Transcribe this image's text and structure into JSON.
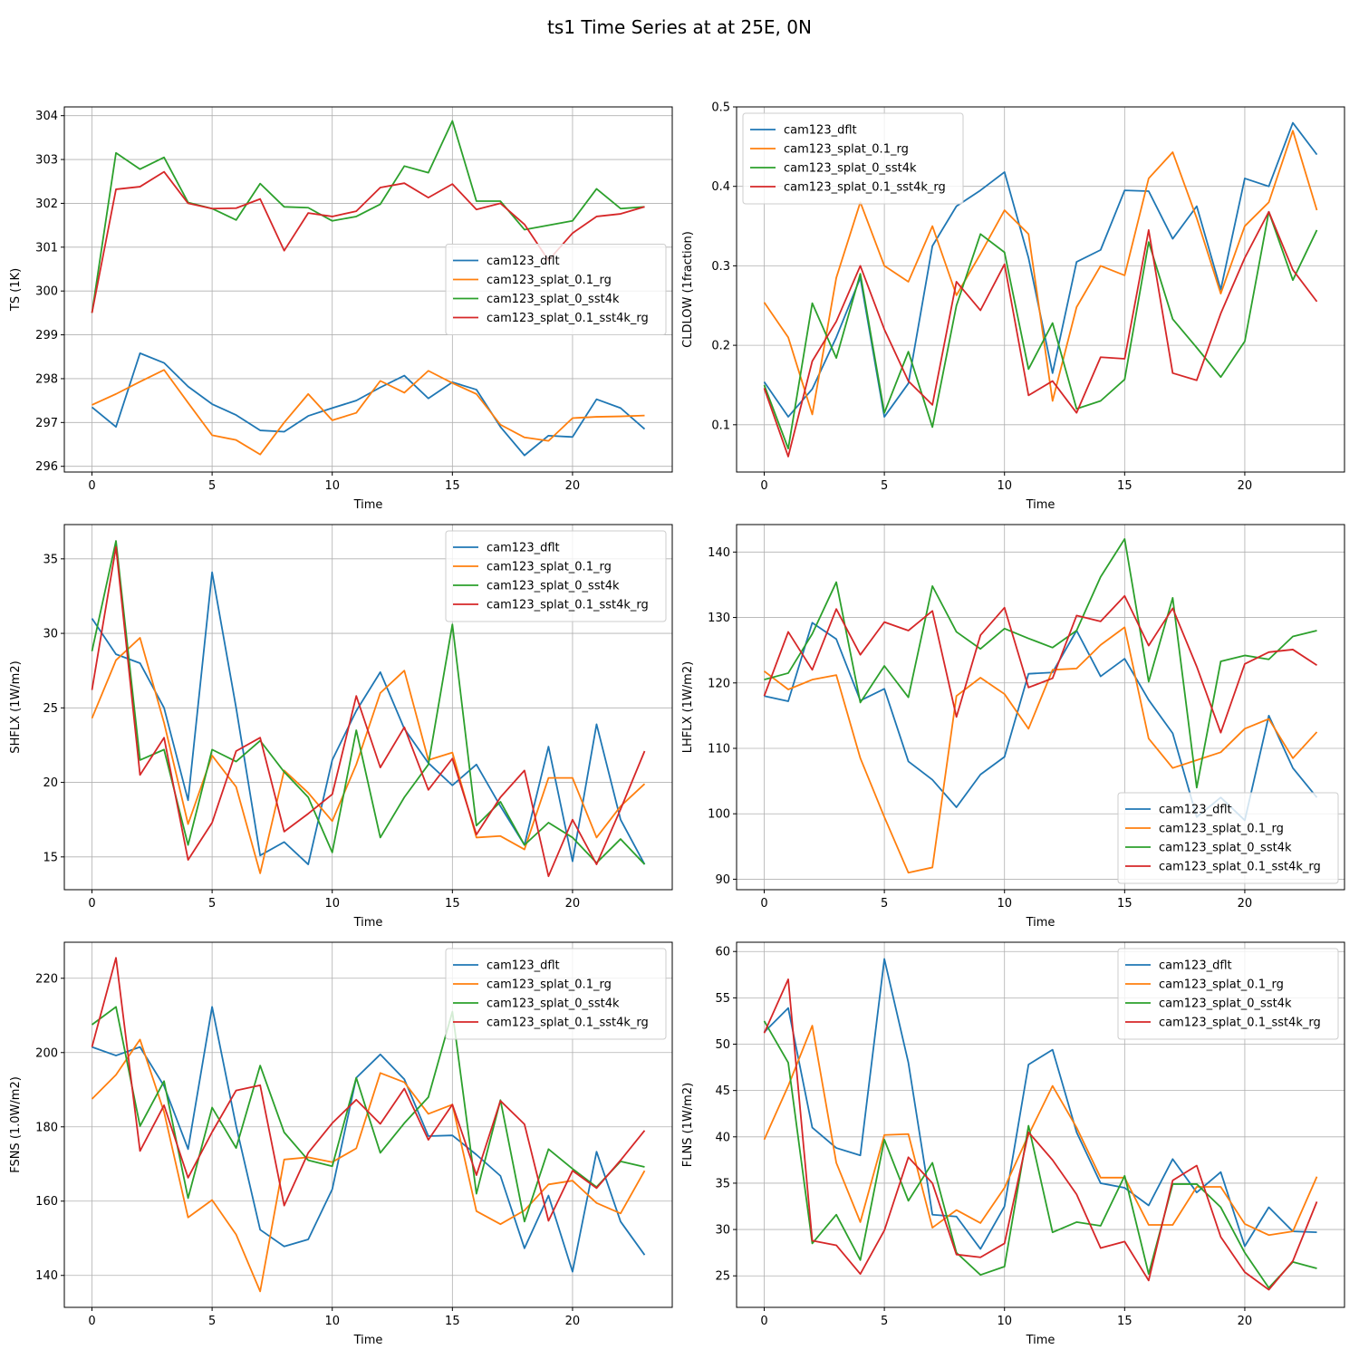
{
  "figure_title": "ts1 Time Series at at 25E, 0N",
  "series_colors": {
    "cam123_dflt": "#1f77b4",
    "cam123_splat_0.1_rg": "#ff7f0e",
    "cam123_splat_0_sst4k": "#2ca02c",
    "cam123_splat_0.1_sst4k_rg": "#d62728"
  },
  "chart_data": [
    {
      "type": "line",
      "title": "",
      "xlabel": "Time",
      "ylabel": "TS (1K)",
      "xlim": [
        -1.15,
        24.15
      ],
      "ylim": [
        295.87,
        304.2
      ],
      "xticks": [
        0,
        5,
        10,
        15,
        20
      ],
      "yticks": [
        296,
        297,
        298,
        299,
        300,
        301,
        302,
        303,
        304
      ],
      "legend_position": "center-right",
      "x": [
        0,
        1,
        2,
        3,
        4,
        5,
        6,
        7,
        8,
        9,
        10,
        11,
        12,
        13,
        14,
        15,
        16,
        17,
        18,
        19,
        20,
        21,
        22,
        23
      ],
      "series": [
        {
          "name": "cam123_dflt",
          "values": [
            297.35,
            296.9,
            298.58,
            298.36,
            297.82,
            297.42,
            297.17,
            296.82,
            296.79,
            297.15,
            297.33,
            297.5,
            297.8,
            298.07,
            297.55,
            297.92,
            297.75,
            296.9,
            296.25,
            296.7,
            296.67,
            297.53,
            297.33,
            296.85
          ]
        },
        {
          "name": "cam123_splat_0.1_rg",
          "values": [
            297.4,
            297.65,
            297.93,
            298.2,
            297.45,
            296.71,
            296.6,
            296.27,
            297.0,
            297.65,
            297.05,
            297.22,
            297.95,
            297.68,
            298.18,
            297.9,
            297.65,
            296.95,
            296.66,
            296.58,
            297.1,
            297.13,
            297.14,
            297.16
          ]
        },
        {
          "name": "cam123_splat_0_sst4k",
          "values": [
            299.5,
            303.15,
            302.78,
            303.05,
            302.02,
            301.88,
            301.62,
            302.45,
            301.92,
            301.9,
            301.6,
            301.7,
            301.98,
            302.85,
            302.7,
            303.88,
            302.05,
            302.05,
            301.4,
            301.5,
            301.6,
            302.33,
            301.88,
            301.92
          ]
        },
        {
          "name": "cam123_splat_0.1_sst4k_rg",
          "values": [
            299.5,
            302.32,
            302.38,
            302.72,
            302.0,
            301.88,
            301.89,
            302.1,
            300.92,
            301.78,
            301.7,
            301.82,
            302.36,
            302.46,
            302.13,
            302.44,
            301.86,
            302.0,
            301.52,
            300.7,
            301.32,
            301.7,
            301.76,
            301.92
          ]
        }
      ]
    },
    {
      "type": "line",
      "title": "",
      "xlabel": "Time",
      "ylabel": "CLDLOW (1fraction)",
      "xlim": [
        -1.15,
        24.15
      ],
      "ylim": [
        0.0405,
        0.5
      ],
      "xticks": [
        0,
        5,
        10,
        15,
        20
      ],
      "yticks": [
        0.1,
        0.2,
        0.3,
        0.4,
        0.5
      ],
      "legend_position": "top-left",
      "x": [
        0,
        1,
        2,
        3,
        4,
        5,
        6,
        7,
        8,
        9,
        10,
        11,
        12,
        13,
        14,
        15,
        16,
        17,
        18,
        19,
        20,
        21,
        22,
        23
      ],
      "series": [
        {
          "name": "cam123_dflt",
          "values": [
            0.154,
            0.11,
            0.145,
            0.21,
            0.285,
            0.11,
            0.152,
            0.325,
            0.375,
            0.395,
            0.418,
            0.31,
            0.165,
            0.305,
            0.32,
            0.395,
            0.394,
            0.334,
            0.375,
            0.27,
            0.41,
            0.4,
            0.48,
            0.44
          ]
        },
        {
          "name": "cam123_splat_0.1_rg",
          "values": [
            0.254,
            0.21,
            0.113,
            0.285,
            0.38,
            0.3,
            0.28,
            0.35,
            0.263,
            0.315,
            0.37,
            0.34,
            0.13,
            0.248,
            0.3,
            0.288,
            0.41,
            0.443,
            0.36,
            0.265,
            0.35,
            0.38,
            0.47,
            0.37
          ]
        },
        {
          "name": "cam123_splat_0_sst4k",
          "values": [
            0.15,
            0.07,
            0.253,
            0.184,
            0.29,
            0.115,
            0.192,
            0.097,
            0.25,
            0.34,
            0.317,
            0.17,
            0.228,
            0.12,
            0.13,
            0.157,
            0.33,
            0.233,
            0.197,
            0.16,
            0.205,
            0.368,
            0.282,
            0.345
          ]
        },
        {
          "name": "cam123_splat_0.1_sst4k_rg",
          "values": [
            0.146,
            0.06,
            0.18,
            0.23,
            0.3,
            0.22,
            0.155,
            0.125,
            0.28,
            0.244,
            0.302,
            0.137,
            0.155,
            0.115,
            0.185,
            0.183,
            0.345,
            0.165,
            0.156,
            0.24,
            0.31,
            0.368,
            0.295,
            0.255
          ]
        }
      ]
    },
    {
      "type": "line",
      "title": "",
      "xlabel": "Time",
      "ylabel": "SHFLX (1W/m2)",
      "xlim": [
        -1.15,
        24.15
      ],
      "ylim": [
        12.8,
        37.3
      ],
      "xticks": [
        0,
        5,
        10,
        15,
        20
      ],
      "yticks": [
        15,
        20,
        25,
        30,
        35
      ],
      "legend_position": "top-right",
      "x": [
        0,
        1,
        2,
        3,
        4,
        5,
        6,
        7,
        8,
        9,
        10,
        11,
        12,
        13,
        14,
        15,
        16,
        17,
        18,
        19,
        20,
        21,
        22,
        23
      ],
      "series": [
        {
          "name": "cam123_dflt",
          "values": [
            31.0,
            28.6,
            28.0,
            25.0,
            18.8,
            34.1,
            25.0,
            15.1,
            16.0,
            14.5,
            21.5,
            24.8,
            27.4,
            23.6,
            21.3,
            19.8,
            21.2,
            18.4,
            15.8,
            22.4,
            14.7,
            23.9,
            17.5,
            14.5
          ]
        },
        {
          "name": "cam123_splat_0.1_rg",
          "values": [
            24.3,
            28.2,
            29.7,
            24.0,
            17.2,
            21.8,
            19.7,
            13.9,
            20.8,
            19.3,
            17.4,
            21.2,
            26.0,
            27.5,
            21.5,
            22.0,
            16.3,
            16.4,
            15.5,
            20.3,
            20.3,
            16.3,
            18.4,
            19.9
          ]
        },
        {
          "name": "cam123_splat_0_sst4k",
          "values": [
            28.8,
            36.2,
            21.5,
            22.2,
            15.8,
            22.2,
            21.4,
            22.8,
            20.7,
            19.0,
            15.3,
            23.5,
            16.3,
            19.0,
            21.2,
            30.6,
            17.1,
            18.7,
            15.8,
            17.3,
            16.3,
            14.6,
            16.2,
            14.5
          ]
        },
        {
          "name": "cam123_splat_0.1_sst4k_rg",
          "values": [
            26.2,
            35.8,
            20.5,
            23.0,
            14.8,
            17.3,
            22.1,
            23.0,
            16.7,
            17.9,
            19.2,
            25.8,
            21.0,
            23.7,
            19.5,
            21.6,
            16.5,
            19.0,
            20.8,
            13.7,
            17.5,
            14.5,
            18.2,
            22.1
          ]
        }
      ]
    },
    {
      "type": "line",
      "title": "",
      "xlabel": "Time",
      "ylabel": "LHFLX (1W/m2)",
      "xlim": [
        -1.15,
        24.15
      ],
      "ylim": [
        88.4,
        144.2
      ],
      "xticks": [
        0,
        5,
        10,
        15,
        20
      ],
      "yticks": [
        90,
        100,
        110,
        120,
        130,
        140
      ],
      "legend_position": "bottom-right",
      "x": [
        0,
        1,
        2,
        3,
        4,
        5,
        6,
        7,
        8,
        9,
        10,
        11,
        12,
        13,
        14,
        15,
        16,
        17,
        18,
        19,
        20,
        21,
        22,
        23
      ],
      "series": [
        {
          "name": "cam123_dflt",
          "values": [
            118.0,
            117.2,
            129.2,
            126.7,
            117.3,
            119.1,
            108.0,
            105.2,
            101.0,
            106.0,
            108.7,
            121.4,
            121.6,
            128.0,
            121.0,
            123.7,
            117.4,
            112.3,
            99.5,
            102.5,
            99.0,
            115.0,
            107.0,
            102.5
          ]
        },
        {
          "name": "cam123_splat_0.1_rg",
          "values": [
            121.8,
            119.0,
            120.5,
            121.2,
            108.5,
            99.5,
            91.0,
            91.8,
            118.0,
            120.8,
            118.3,
            113.0,
            122.0,
            122.2,
            125.8,
            128.5,
            111.5,
            107.0,
            108.2,
            109.4,
            113.0,
            114.5,
            108.5,
            112.5
          ]
        },
        {
          "name": "cam123_splat_0_sst4k",
          "values": [
            120.5,
            121.5,
            127.5,
            135.4,
            117.0,
            122.6,
            117.8,
            134.8,
            127.8,
            125.2,
            128.3,
            126.8,
            125.4,
            128.0,
            136.2,
            142.0,
            120.2,
            133.0,
            104.0,
            123.3,
            124.2,
            123.6,
            127.1,
            128.0
          ]
        },
        {
          "name": "cam123_splat_0.1_sst4k_rg",
          "values": [
            118.0,
            127.8,
            122.0,
            131.3,
            124.3,
            129.3,
            128.0,
            131.0,
            114.8,
            127.3,
            131.5,
            119.3,
            120.7,
            130.3,
            129.4,
            133.3,
            125.7,
            131.4,
            122.5,
            112.4,
            122.9,
            124.7,
            125.1,
            122.7
          ]
        }
      ]
    },
    {
      "type": "line",
      "title": "",
      "xlabel": "Time",
      "ylabel": "FSNS (1.0W/m2)",
      "xlim": [
        -1.15,
        24.15
      ],
      "ylim": [
        131.4,
        229.7
      ],
      "xticks": [
        0,
        5,
        10,
        15,
        20
      ],
      "yticks": [
        140,
        160,
        180,
        200,
        220
      ],
      "legend_position": "top-right",
      "x": [
        0,
        1,
        2,
        3,
        4,
        5,
        6,
        7,
        8,
        9,
        10,
        11,
        12,
        13,
        14,
        15,
        16,
        17,
        18,
        19,
        20,
        21,
        22,
        23
      ],
      "series": [
        {
          "name": "cam123_dflt",
          "values": [
            201.5,
            199.2,
            201.5,
            191.0,
            174.0,
            212.3,
            180.2,
            152.3,
            147.8,
            149.7,
            163.2,
            193.2,
            199.5,
            192.8,
            177.5,
            177.7,
            172.5,
            166.8,
            147.3,
            161.5,
            141.0,
            173.3,
            154.5,
            145.5
          ]
        },
        {
          "name": "cam123_splat_0.1_rg",
          "values": [
            187.5,
            194.0,
            203.5,
            184.0,
            155.6,
            160.3,
            151.0,
            135.7,
            171.2,
            171.8,
            170.5,
            174.2,
            194.5,
            192.0,
            183.5,
            186.0,
            157.3,
            153.8,
            157.5,
            164.5,
            165.5,
            159.5,
            156.7,
            168.2
          ]
        },
        {
          "name": "cam123_splat_0_sst4k",
          "values": [
            207.5,
            212.3,
            180.2,
            192.3,
            160.8,
            185.2,
            174.3,
            196.5,
            178.5,
            171.0,
            169.4,
            193.2,
            173.0,
            181.0,
            188.0,
            211.0,
            162.0,
            187.2,
            154.5,
            174.0,
            168.7,
            163.8,
            170.7,
            169.2
          ]
        },
        {
          "name": "cam123_splat_0.1_sst4k_rg",
          "values": [
            201.5,
            225.5,
            173.5,
            185.8,
            166.3,
            178.6,
            189.8,
            191.2,
            158.8,
            173.0,
            181.0,
            187.3,
            180.8,
            190.3,
            176.5,
            186.0,
            167.0,
            187.0,
            180.7,
            154.7,
            168.2,
            163.5,
            171.0,
            179.0
          ]
        }
      ]
    },
    {
      "type": "line",
      "title": "",
      "xlabel": "Time",
      "ylabel": "FLNS (1W/m2)",
      "xlim": [
        -1.15,
        24.15
      ],
      "ylim": [
        21.6,
        61.0
      ],
      "xticks": [
        0,
        5,
        10,
        15,
        20
      ],
      "yticks": [
        25,
        30,
        35,
        40,
        45,
        50,
        55,
        60
      ],
      "legend_position": "top-right",
      "x": [
        0,
        1,
        2,
        3,
        4,
        5,
        6,
        7,
        8,
        9,
        10,
        11,
        12,
        13,
        14,
        15,
        16,
        17,
        18,
        19,
        20,
        21,
        22,
        23
      ],
      "series": [
        {
          "name": "cam123_dflt",
          "values": [
            51.3,
            53.9,
            41.0,
            38.8,
            38.0,
            59.2,
            48.0,
            31.6,
            31.4,
            27.9,
            32.5,
            47.8,
            49.4,
            40.5,
            35.0,
            34.5,
            32.6,
            37.6,
            34.0,
            36.2,
            28.2,
            32.4,
            29.8,
            29.7
          ]
        },
        {
          "name": "cam123_splat_0.1_rg",
          "values": [
            39.7,
            45.5,
            52.0,
            37.2,
            30.8,
            40.2,
            40.3,
            30.2,
            32.1,
            30.7,
            34.5,
            40.2,
            45.5,
            41.0,
            35.6,
            35.6,
            30.5,
            30.5,
            34.6,
            34.6,
            30.6,
            29.4,
            29.8,
            35.7
          ]
        },
        {
          "name": "cam123_splat_0_sst4k",
          "values": [
            52.5,
            48.0,
            28.5,
            31.6,
            26.7,
            39.7,
            33.1,
            37.2,
            27.5,
            25.1,
            26.0,
            41.2,
            29.7,
            30.8,
            30.4,
            35.8,
            25.2,
            34.9,
            34.9,
            32.4,
            27.5,
            23.7,
            26.5,
            25.8
          ]
        },
        {
          "name": "cam123_splat_0.1_sst4k_rg",
          "values": [
            51.2,
            57.0,
            28.8,
            28.3,
            25.2,
            29.9,
            37.8,
            35.0,
            27.3,
            27.0,
            28.5,
            40.5,
            37.5,
            33.8,
            28.0,
            28.7,
            24.5,
            35.3,
            36.9,
            29.2,
            25.4,
            23.5,
            26.6,
            33.0
          ]
        }
      ]
    }
  ]
}
